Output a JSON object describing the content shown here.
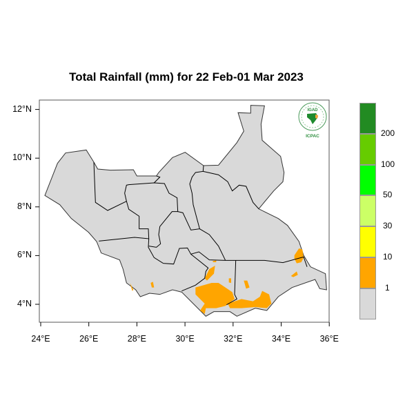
{
  "title": "Total Rainfall (mm) for 22 Feb-01 Mar 2023",
  "axes": {
    "lat_ticks": [
      {
        "value": 12,
        "label": "12°N"
      },
      {
        "value": 10,
        "label": "10°N"
      },
      {
        "value": 8,
        "label": "8°N"
      },
      {
        "value": 6,
        "label": "6°N"
      },
      {
        "value": 4,
        "label": "4°N"
      }
    ],
    "lon_ticks": [
      {
        "value": 24,
        "label": "24°E"
      },
      {
        "value": 26,
        "label": "26°E"
      },
      {
        "value": 28,
        "label": "28°E"
      },
      {
        "value": 30,
        "label": "30°E"
      },
      {
        "value": 32,
        "label": "32°E"
      },
      {
        "value": 34,
        "label": "34°E"
      },
      {
        "value": 36,
        "label": "36°E"
      }
    ]
  },
  "legend": {
    "colors": [
      "#228B22",
      "#66CC00",
      "#00FF00",
      "#CCFF66",
      "#FFFF00",
      "#FFA500",
      "#D9D9D9"
    ],
    "labels": [
      "200",
      "100",
      "50",
      "30",
      "10",
      "1"
    ]
  },
  "logo": {
    "top_text": "IGAD",
    "bottom_text": "ICPAC"
  },
  "colors": {
    "land": "#D9D9D9",
    "rain_1_10": "#FFA500",
    "border": "#000000"
  }
}
